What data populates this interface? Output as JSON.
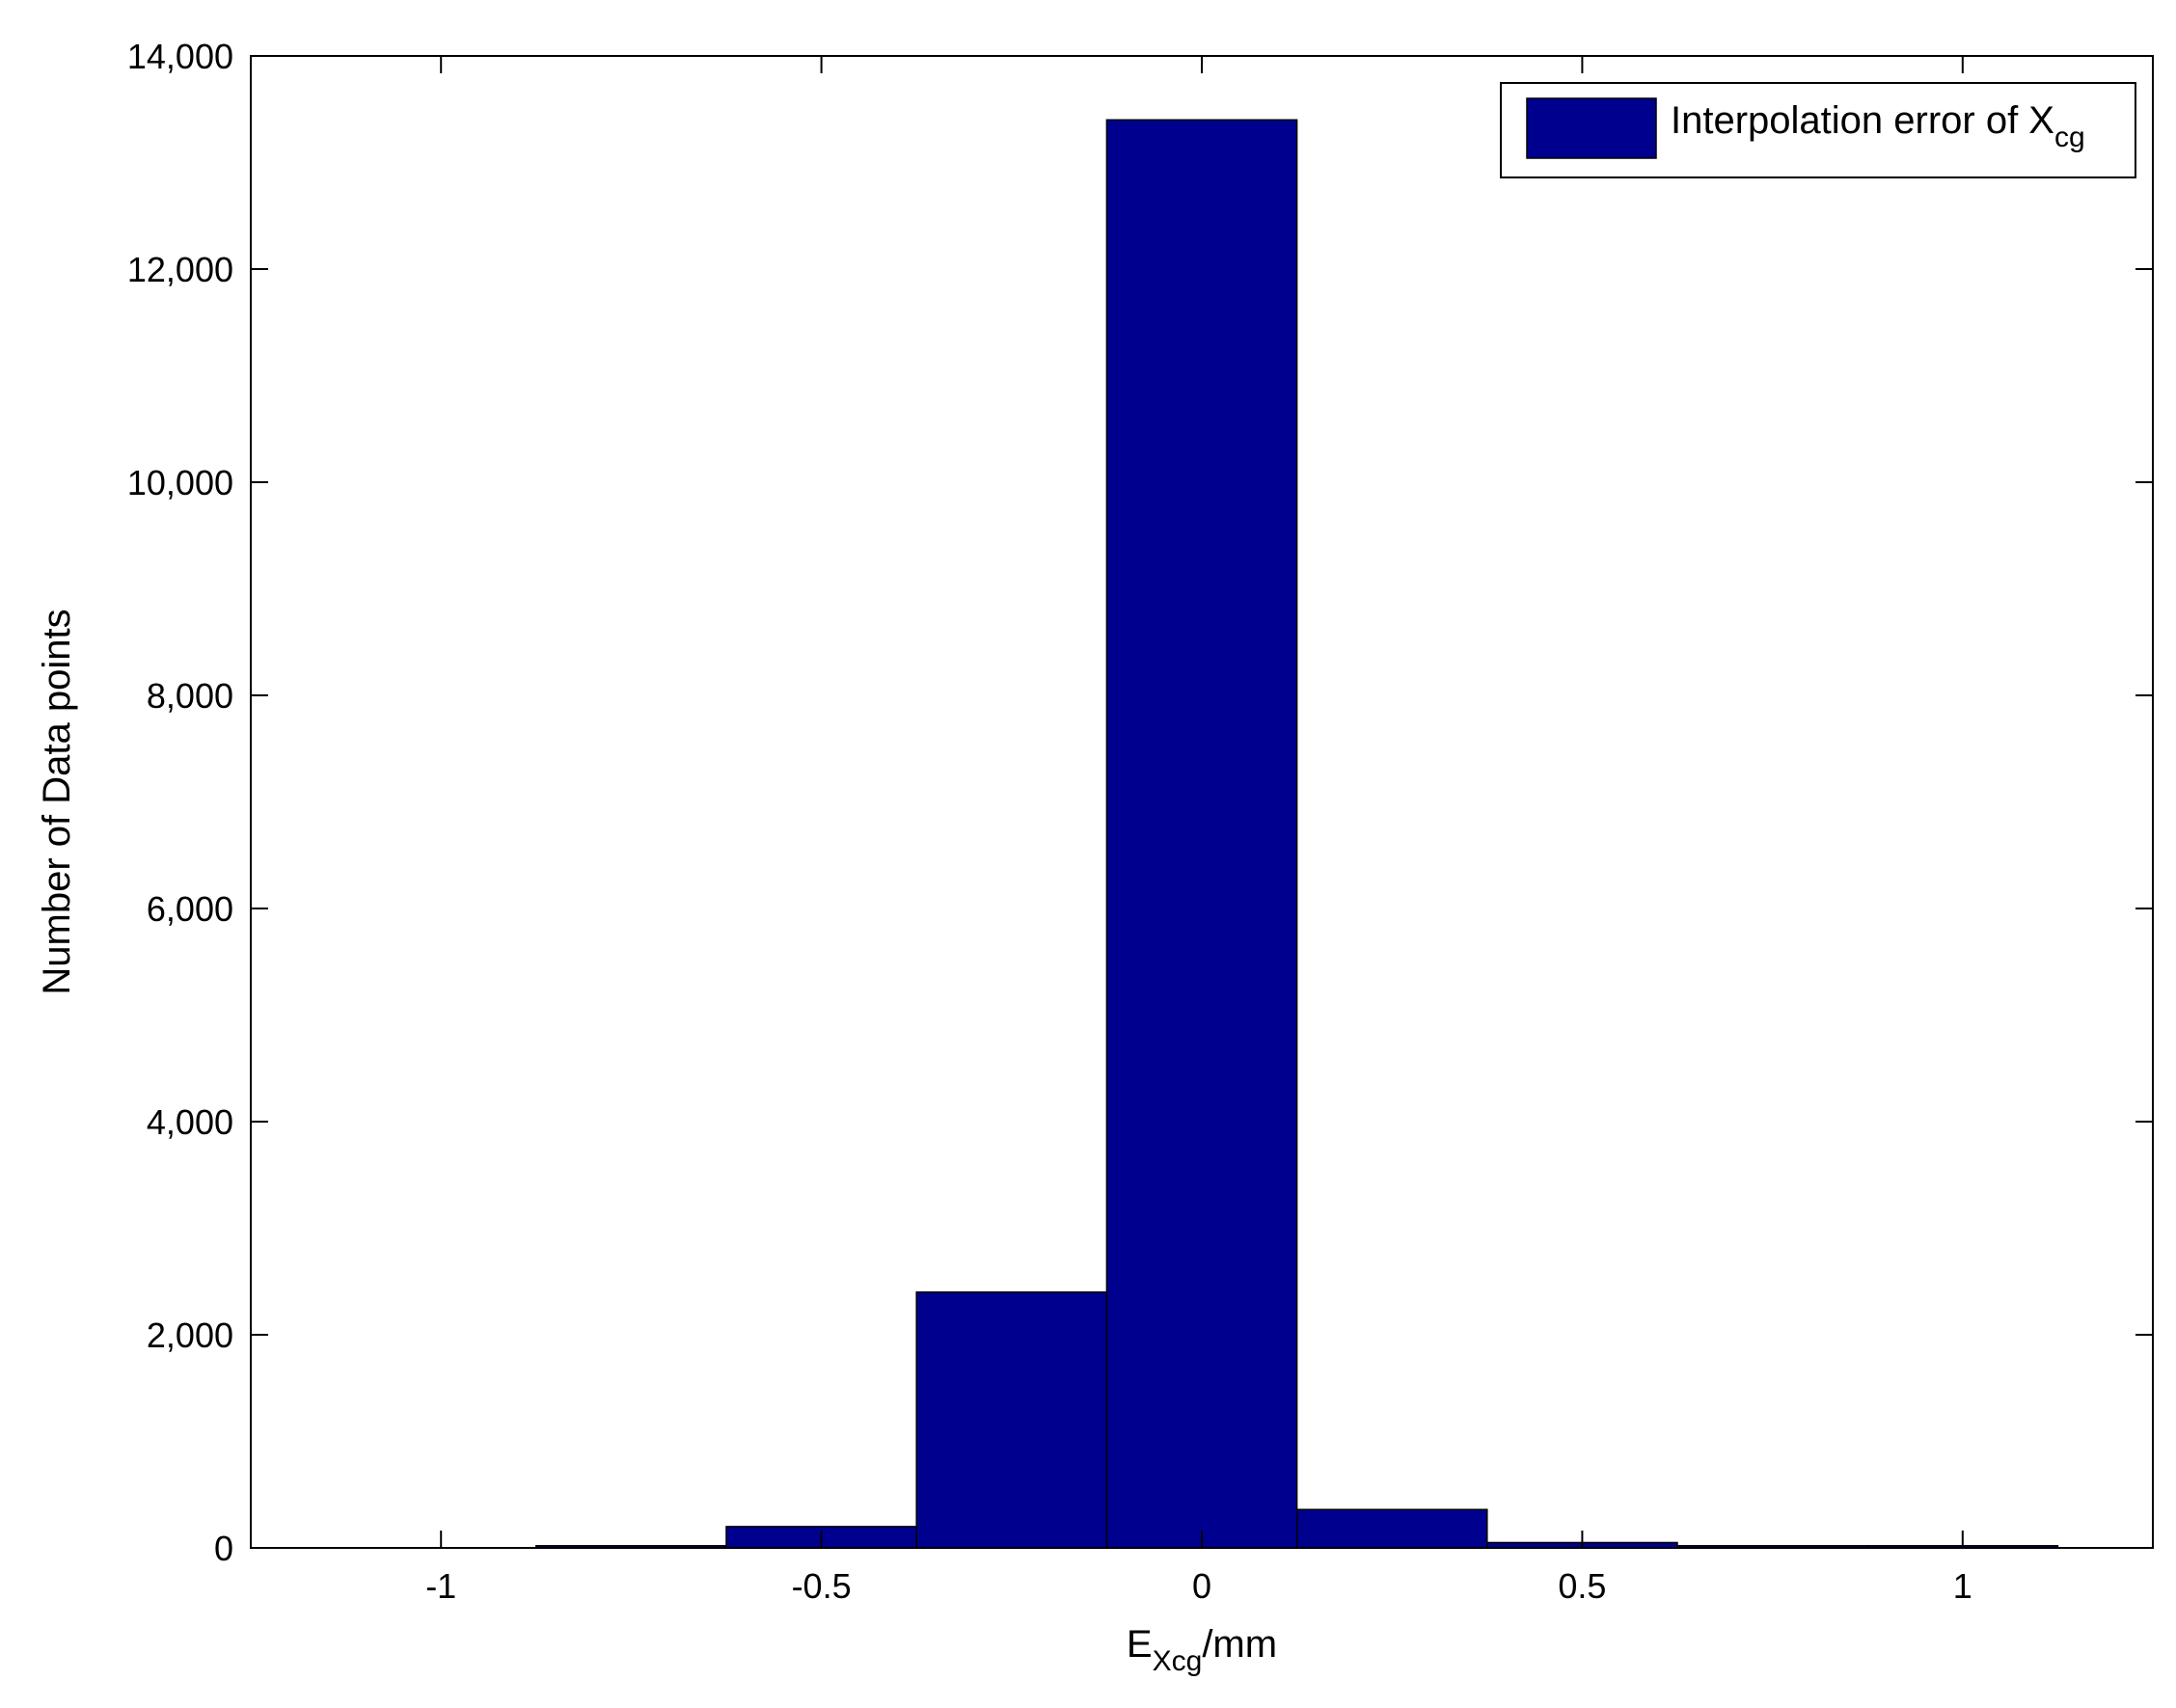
{
  "chart_data": {
    "type": "bar",
    "bin_width": 0.25,
    "bins": [
      {
        "center": -0.75,
        "value": 20
      },
      {
        "center": -0.5,
        "value": 200
      },
      {
        "center": -0.25,
        "value": 2400
      },
      {
        "center": 0.0,
        "value": 13400
      },
      {
        "center": 0.25,
        "value": 360
      },
      {
        "center": 0.5,
        "value": 50
      },
      {
        "center": 0.75,
        "value": 20
      },
      {
        "center": 1.0,
        "value": 20
      }
    ],
    "series": [
      {
        "name": "Interpolation error of Xcg"
      }
    ],
    "legend": {
      "main": "Interpolation error of X",
      "sub": "cg",
      "position": "top-right"
    },
    "xlabel": {
      "main": "E",
      "sub": "Xcg",
      "suffix": "/mm"
    },
    "ylabel": "Number of Data points",
    "xlim": [
      -1.25,
      1.25
    ],
    "ylim": [
      0,
      14000
    ],
    "xticks": [
      -1,
      -0.5,
      0,
      0.5,
      1
    ],
    "xtick_labels": [
      "-1",
      "-0.5",
      "0",
      "0.5",
      "1"
    ],
    "yticks": [
      0,
      2000,
      4000,
      6000,
      8000,
      10000,
      12000,
      14000
    ],
    "ytick_labels": [
      "0",
      "2,000",
      "4,000",
      "6,000",
      "8,000",
      "10,000",
      "12,000",
      "14,000"
    ],
    "bar_color": "#00008f",
    "grid": false
  }
}
